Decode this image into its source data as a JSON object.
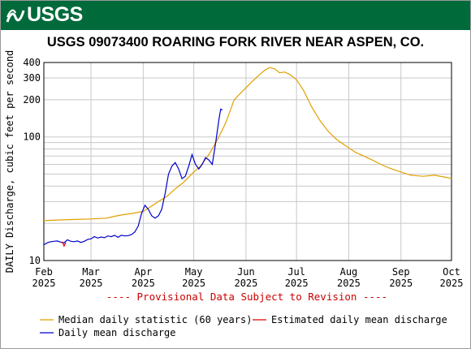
{
  "header": {
    "agency": "USGS",
    "title": "USGS 09073400 ROARING FORK RIVER NEAR ASPEN, CO."
  },
  "colors": {
    "header_bg": "#006a3b",
    "median": "#e0a000",
    "daily_mean": "#0000cc",
    "estimated": "#dd0000",
    "provisional_text": "#cc0000"
  },
  "chart_data": {
    "type": "line",
    "ylabel": "DAILY Discharge, cubic feet per second",
    "yscale": "log",
    "ylim": [
      10,
      400
    ],
    "xlim": [
      "2025-02-01",
      "2025-10-01"
    ],
    "grid": true,
    "y_ticks": [
      {
        "value": 10,
        "label": "10"
      },
      {
        "value": 100,
        "label": "100"
      },
      {
        "value": 200,
        "label": "200"
      },
      {
        "value": 300,
        "label": "300"
      },
      {
        "value": 400,
        "label": "400"
      }
    ],
    "x_ticks": [
      {
        "date": "2025-02-01",
        "month": "Feb",
        "year": "2025"
      },
      {
        "date": "2025-03-01",
        "month": "Mar",
        "year": "2025"
      },
      {
        "date": "2025-04-01",
        "month": "Apr",
        "year": "2025"
      },
      {
        "date": "2025-05-01",
        "month": "May",
        "year": "2025"
      },
      {
        "date": "2025-06-01",
        "month": "Jun",
        "year": "2025"
      },
      {
        "date": "2025-07-01",
        "month": "Jul",
        "year": "2025"
      },
      {
        "date": "2025-08-01",
        "month": "Aug",
        "year": "2025"
      },
      {
        "date": "2025-09-01",
        "month": "Sep",
        "year": "2025"
      },
      {
        "date": "2025-10-01",
        "month": "Oct",
        "year": "2025"
      }
    ],
    "annotation": "---- Provisional Data Subject to Revision ----",
    "legend_placement": "bottom",
    "series": [
      {
        "name": "Median daily statistic (60 years)",
        "color": "#e0a000",
        "points": [
          [
            "2025-02-01",
            21.0
          ],
          [
            "2025-02-10",
            21.3
          ],
          [
            "2025-02-20",
            21.5
          ],
          [
            "2025-03-01",
            21.7
          ],
          [
            "2025-03-10",
            22.0
          ],
          [
            "2025-03-15",
            22.8
          ],
          [
            "2025-03-20",
            23.5
          ],
          [
            "2025-03-25",
            24.0
          ],
          [
            "2025-04-01",
            25.0
          ],
          [
            "2025-04-05",
            27.0
          ],
          [
            "2025-04-10",
            30.0
          ],
          [
            "2025-04-15",
            33.0
          ],
          [
            "2025-04-20",
            38.0
          ],
          [
            "2025-04-25",
            43.0
          ],
          [
            "2025-05-01",
            52.0
          ],
          [
            "2025-05-05",
            58.0
          ],
          [
            "2025-05-10",
            72.0
          ],
          [
            "2025-05-15",
            95.0
          ],
          [
            "2025-05-20",
            130.0
          ],
          [
            "2025-05-25",
            200.0
          ],
          [
            "2025-05-30",
            235.0
          ],
          [
            "2025-06-04",
            275.0
          ],
          [
            "2025-06-08",
            310.0
          ],
          [
            "2025-06-12",
            345.0
          ],
          [
            "2025-06-15",
            365.0
          ],
          [
            "2025-06-18",
            355.0
          ],
          [
            "2025-06-21",
            330.0
          ],
          [
            "2025-06-24",
            335.0
          ],
          [
            "2025-06-27",
            320.0
          ],
          [
            "2025-07-01",
            290.0
          ],
          [
            "2025-07-05",
            240.0
          ],
          [
            "2025-07-10",
            175.0
          ],
          [
            "2025-07-15",
            135.0
          ],
          [
            "2025-07-20",
            110.0
          ],
          [
            "2025-07-25",
            95.0
          ],
          [
            "2025-07-30",
            85.0
          ],
          [
            "2025-08-05",
            75.0
          ],
          [
            "2025-08-10",
            70.0
          ],
          [
            "2025-08-15",
            65.0
          ],
          [
            "2025-08-20",
            60.0
          ],
          [
            "2025-08-25",
            56.0
          ],
          [
            "2025-09-01",
            52.0
          ],
          [
            "2025-09-07",
            49.0
          ],
          [
            "2025-09-14",
            48.0
          ],
          [
            "2025-09-21",
            49.0
          ],
          [
            "2025-09-28",
            47.0
          ],
          [
            "2025-10-01",
            46.0
          ]
        ]
      },
      {
        "name": "Estimated daily mean discharge",
        "color": "#dd0000",
        "points": [
          [
            "2025-02-12",
            14.2
          ],
          [
            "2025-02-13",
            13.1
          ],
          [
            "2025-02-14",
            14.0
          ]
        ]
      },
      {
        "name": "Daily mean discharge",
        "color": "#0000cc",
        "points": [
          [
            "2025-02-01",
            13.4
          ],
          [
            "2025-02-03",
            13.9
          ],
          [
            "2025-02-05",
            14.2
          ],
          [
            "2025-02-07",
            14.3
          ],
          [
            "2025-02-09",
            14.4
          ],
          [
            "2025-02-11",
            14.1
          ],
          [
            "2025-02-13",
            13.9
          ],
          [
            "2025-02-15",
            14.7
          ],
          [
            "2025-02-17",
            14.3
          ],
          [
            "2025-02-19",
            14.2
          ],
          [
            "2025-02-21",
            14.4
          ],
          [
            "2025-02-23",
            14.0
          ],
          [
            "2025-02-25",
            14.3
          ],
          [
            "2025-02-27",
            14.8
          ],
          [
            "2025-03-01",
            15.0
          ],
          [
            "2025-03-03",
            15.6
          ],
          [
            "2025-03-05",
            15.2
          ],
          [
            "2025-03-07",
            15.5
          ],
          [
            "2025-03-09",
            15.3
          ],
          [
            "2025-03-11",
            15.8
          ],
          [
            "2025-03-13",
            15.6
          ],
          [
            "2025-03-15",
            16.0
          ],
          [
            "2025-03-17",
            15.4
          ],
          [
            "2025-03-19",
            16.0
          ],
          [
            "2025-03-21",
            15.8
          ],
          [
            "2025-03-23",
            15.9
          ],
          [
            "2025-03-25",
            16.2
          ],
          [
            "2025-03-27",
            17.0
          ],
          [
            "2025-03-29",
            19.0
          ],
          [
            "2025-03-31",
            24.0
          ],
          [
            "2025-04-02",
            28.0
          ],
          [
            "2025-04-04",
            26.0
          ],
          [
            "2025-04-06",
            23.0
          ],
          [
            "2025-04-08",
            22.0
          ],
          [
            "2025-04-10",
            23.0
          ],
          [
            "2025-04-12",
            26.0
          ],
          [
            "2025-04-14",
            35.0
          ],
          [
            "2025-04-16",
            50.0
          ],
          [
            "2025-04-18",
            58.0
          ],
          [
            "2025-04-20",
            62.0
          ],
          [
            "2025-04-22",
            55.0
          ],
          [
            "2025-04-24",
            46.0
          ],
          [
            "2025-04-26",
            48.0
          ],
          [
            "2025-04-28",
            58.0
          ],
          [
            "2025-04-30",
            72.0
          ],
          [
            "2025-05-02",
            60.0
          ],
          [
            "2025-05-04",
            55.0
          ],
          [
            "2025-05-06",
            60.0
          ],
          [
            "2025-05-08",
            68.0
          ],
          [
            "2025-05-10",
            65.0
          ],
          [
            "2025-05-12",
            60.0
          ],
          [
            "2025-05-14",
            90.0
          ],
          [
            "2025-05-16",
            140.0
          ],
          [
            "2025-05-17",
            168.0
          ],
          [
            "2025-05-18",
            165.0
          ]
        ]
      }
    ]
  }
}
